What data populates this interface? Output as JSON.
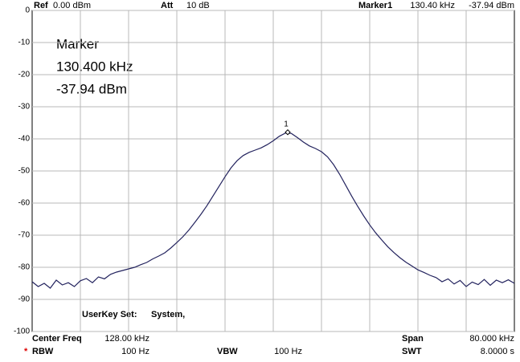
{
  "header": {
    "ref_label": "Ref",
    "ref": "0.00 dBm",
    "att_label": "Att",
    "att": "10 dB",
    "marker_label": "Marker1",
    "marker_freq": "130.40 kHz",
    "marker_level": "-37.94 dBm"
  },
  "marker_box": {
    "title": "Marker",
    "freq": "130.400 kHz",
    "level": "-37.94 dBm"
  },
  "userkey": {
    "label": "UserKey Set:",
    "value": "System,"
  },
  "footer": {
    "center_label": "Center Freq",
    "center": "128.00 kHz",
    "span_label": "Span",
    "span": "80.000 kHz",
    "star": "*",
    "rbw_label": "RBW",
    "rbw": "100 Hz",
    "vbw_label": "VBW",
    "vbw": "100 Hz",
    "swt_label": "SWT",
    "swt": "8.0000 s"
  },
  "chart_data": {
    "type": "line",
    "color": "#23235e",
    "xlim": [
      88,
      168
    ],
    "ylim": [
      -100,
      0
    ],
    "yticks": [
      0,
      -10,
      -20,
      -30,
      -40,
      -50,
      -60,
      -70,
      -80,
      -90,
      -100
    ],
    "grid": true,
    "x": [
      88,
      89,
      90,
      91,
      92,
      93,
      94,
      95,
      96,
      97,
      98,
      99,
      100,
      101,
      102,
      103,
      104,
      105,
      106,
      107,
      108,
      109,
      110,
      111,
      112,
      113,
      114,
      115,
      116,
      117,
      118,
      119,
      120,
      121,
      122,
      123,
      124,
      125,
      126,
      127,
      128,
      129,
      130,
      131,
      132,
      133,
      134,
      135,
      136,
      137,
      138,
      139,
      140,
      141,
      142,
      143,
      144,
      145,
      146,
      147,
      148,
      149,
      150,
      151,
      152,
      153,
      154,
      155,
      156,
      157,
      158,
      159,
      160,
      161,
      162,
      163,
      164,
      165,
      166,
      167,
      168
    ],
    "values": [
      -84.5,
      -86,
      -85,
      -86.5,
      -84,
      -85.5,
      -84.8,
      -86,
      -84.2,
      -83.5,
      -84.8,
      -83,
      -83.6,
      -82.2,
      -81.5,
      -81,
      -80.5,
      -80,
      -79.2,
      -78.5,
      -77.4,
      -76.5,
      -75.5,
      -74,
      -72.3,
      -70.5,
      -68.4,
      -66,
      -63.5,
      -60.8,
      -57.8,
      -54.8,
      -51.8,
      -49,
      -46.8,
      -45.2,
      -44.2,
      -43.5,
      -42.8,
      -41.8,
      -40.6,
      -39.2,
      -38.2,
      -38.3,
      -39.6,
      -41,
      -42.2,
      -43,
      -44,
      -45.6,
      -48,
      -51,
      -54.4,
      -57.8,
      -61,
      -64,
      -66.8,
      -69.3,
      -71.5,
      -73.6,
      -75.4,
      -77,
      -78.4,
      -79.6,
      -80.8,
      -81.6,
      -82.5,
      -83.2,
      -84.5,
      -83.6,
      -85.2,
      -84.1,
      -86,
      -84.6,
      -85.4,
      -83.8,
      -85.6,
      -84,
      -84.8,
      -83.9,
      -85
    ],
    "marker": {
      "label": "1",
      "x": 130.4,
      "y": -37.94
    }
  }
}
